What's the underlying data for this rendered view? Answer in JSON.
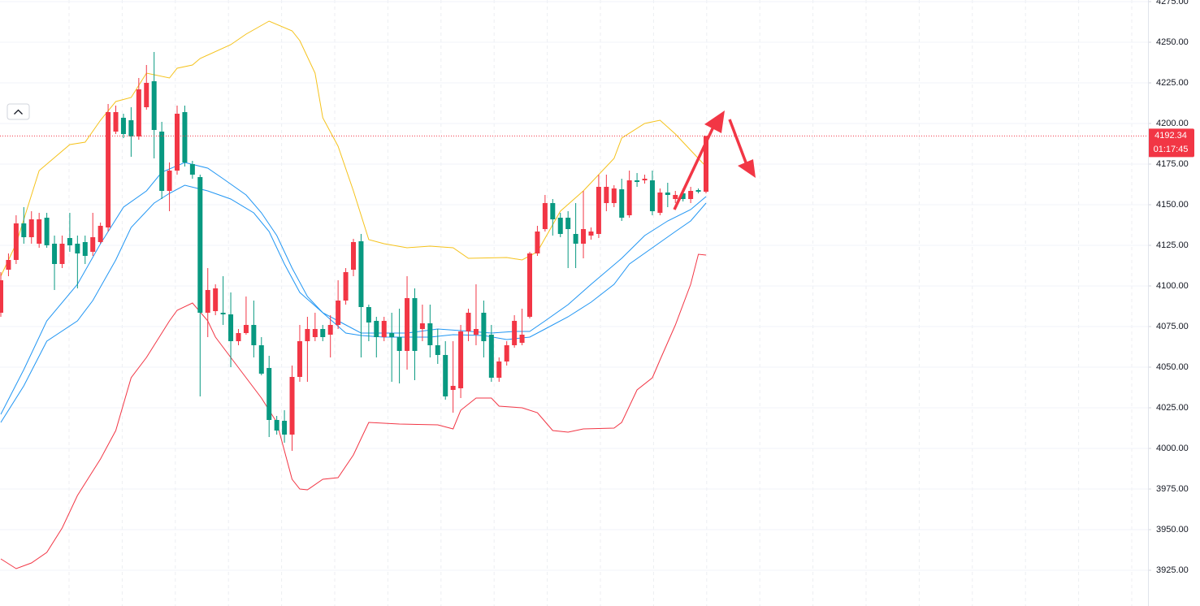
{
  "chart_data": {
    "type": "candlestick",
    "ylim": [
      3903,
      4276
    ],
    "yticks": [
      {
        "value": 3925,
        "label": "3925.00"
      },
      {
        "value": 3950,
        "label": "3950.00"
      },
      {
        "value": 3975,
        "label": "3975.00"
      },
      {
        "value": 4000,
        "label": "4000.00"
      },
      {
        "value": 4025,
        "label": "4025.00"
      },
      {
        "value": 4050,
        "label": "4050.00"
      },
      {
        "value": 4075,
        "label": "4075.00"
      },
      {
        "value": 4100,
        "label": "4100.00"
      },
      {
        "value": 4125,
        "label": "4125.00"
      },
      {
        "value": 4150,
        "label": "4150.00"
      },
      {
        "value": 4175,
        "label": "4175.00"
      },
      {
        "value": 4200,
        "label": "4200.00"
      },
      {
        "value": 4225,
        "label": "4225.00"
      },
      {
        "value": 4250,
        "label": "4250.00"
      },
      {
        "value": 4275,
        "label": "4275.00"
      }
    ],
    "grid": true,
    "up_color": "#f23645",
    "down_color": "#089981",
    "last_price": 4192.34,
    "countdown": "01:17:45",
    "ohlc": [
      [
        4083.5,
        4108.5,
        4081,
        4103.5
      ],
      [
        4110,
        4120,
        4106,
        4116
      ],
      [
        4116,
        4143.5,
        4113.5,
        4138.5
      ],
      [
        4138.5,
        4148.5,
        4126,
        4130
      ],
      [
        4130,
        4146,
        4126,
        4141
      ],
      [
        4126,
        4145,
        4123.5,
        4141
      ],
      [
        4142,
        4145,
        4123.5,
        4125
      ],
      [
        4126,
        4131,
        4097.5,
        4113.5
      ],
      [
        4113.5,
        4131,
        4111,
        4126
      ],
      [
        4129.5,
        4145,
        4121,
        4125
      ],
      [
        4126,
        4131,
        4098.5,
        4120
      ],
      [
        4127,
        4131,
        4113.5,
        4118.5
      ],
      [
        4121,
        4145,
        4118.5,
        4130
      ],
      [
        4127,
        4139,
        4126,
        4137
      ],
      [
        4136,
        4212,
        4133.5,
        4207
      ],
      [
        4195,
        4211,
        4193.5,
        4207
      ],
      [
        4203.5,
        4206,
        4191,
        4193.5
      ],
      [
        4202,
        4210,
        4179.5,
        4192
      ],
      [
        4192,
        4228,
        4190,
        4221
      ],
      [
        4210,
        4236,
        4208.5,
        4225
      ],
      [
        4226,
        4244,
        4178.5,
        4196
      ],
      [
        4195,
        4201,
        4153.5,
        4158.5
      ],
      [
        4158.5,
        4176,
        4146,
        4171
      ],
      [
        4171,
        4211,
        4168.5,
        4206
      ],
      [
        4207,
        4211,
        4173.5,
        4176
      ],
      [
        4175,
        4177,
        4166,
        4168.5
      ],
      [
        4167,
        4168.5,
        4032,
        4083.5
      ],
      [
        4083.5,
        4111,
        4068.5,
        4097.5
      ],
      [
        4084.5,
        4101,
        4082,
        4098.5
      ],
      [
        4083.5,
        4106,
        4076,
        4082.5
      ],
      [
        4082.5,
        4096,
        4050,
        4066
      ],
      [
        4066,
        4073.5,
        4063.5,
        4071
      ],
      [
        4071,
        4093.5,
        4070,
        4076
      ],
      [
        4076,
        4091,
        4056,
        4063.5
      ],
      [
        4063.5,
        4068.5,
        4045,
        4046
      ],
      [
        4049.5,
        4057,
        4007,
        4017.5
      ],
      [
        4017.5,
        4020,
        4008.5,
        4011
      ],
      [
        4017,
        4023.5,
        4003.5,
        4008.5
      ],
      [
        4008.5,
        4051,
        3998.5,
        4044
      ],
      [
        4044,
        4076,
        4041,
        4066
      ],
      [
        4066,
        4081,
        4041,
        4073.5
      ],
      [
        4068.5,
        4083.5,
        4066,
        4073.5
      ],
      [
        4073.5,
        4076,
        4066,
        4068.5
      ],
      [
        4070,
        4082,
        4056,
        4076
      ],
      [
        4076,
        4103.5,
        4073.5,
        4091
      ],
      [
        4091,
        4111,
        4088.5,
        4108.5
      ],
      [
        4110,
        4129,
        4106,
        4127
      ],
      [
        4127.5,
        4132,
        4056,
        4087
      ],
      [
        4087,
        4088.5,
        4066,
        4077.5
      ],
      [
        4078.5,
        4081,
        4056,
        4068.5
      ],
      [
        4068.5,
        4081,
        4066,
        4078.5
      ],
      [
        4071,
        4083.5,
        4041,
        4068.5
      ],
      [
        4068.5,
        4086,
        4040,
        4060
      ],
      [
        4060,
        4106,
        4048.5,
        4092.5
      ],
      [
        4092.5,
        4098.5,
        4042,
        4060
      ],
      [
        4073.5,
        4088.5,
        4066,
        4077
      ],
      [
        4077,
        4088.5,
        4056,
        4063.5
      ],
      [
        4063.5,
        4073.5,
        4052,
        4057.5
      ],
      [
        4057.5,
        4066,
        4030,
        4032
      ],
      [
        4036,
        4066,
        4022,
        4038.5
      ],
      [
        4037,
        4076,
        4031,
        4072
      ],
      [
        4072,
        4086,
        4066,
        4083.5
      ],
      [
        4070,
        4101,
        4063.5,
        4073.5
      ],
      [
        4083.5,
        4091,
        4056,
        4066
      ],
      [
        4070,
        4076,
        4041,
        4043.5
      ],
      [
        4043.5,
        4056,
        4041,
        4053.5
      ],
      [
        4053.5,
        4066,
        4051,
        4063.5
      ],
      [
        4063.5,
        4082,
        4062,
        4078.5
      ],
      [
        4065,
        4086,
        4063.5,
        4070
      ],
      [
        4081,
        4121,
        4080,
        4120
      ],
      [
        4120,
        4137,
        4118.5,
        4133.5
      ],
      [
        4135,
        4156,
        4133.5,
        4151
      ],
      [
        4151,
        4153.5,
        4131,
        4141
      ],
      [
        4142,
        4145,
        4130,
        4132
      ],
      [
        4142,
        4146,
        4111,
        4135
      ],
      [
        4132,
        4151,
        4111,
        4126
      ],
      [
        4126,
        4158.5,
        4117,
        4135
      ],
      [
        4131,
        4136,
        4128.5,
        4133.5
      ],
      [
        4132,
        4168.5,
        4129.5,
        4161
      ],
      [
        4151,
        4168.5,
        4146,
        4161
      ],
      [
        4151,
        4162,
        4148.5,
        4160
      ],
      [
        4159.5,
        4166,
        4140,
        4142
      ],
      [
        4143.5,
        4171,
        4142,
        4165
      ],
      [
        4165,
        4169.5,
        4161,
        4164
      ],
      [
        4165,
        4168.5,
        4163,
        4166
      ],
      [
        4165,
        4171,
        4143.5,
        4146
      ],
      [
        4145,
        4160,
        4143.5,
        4157.5
      ],
      [
        4157.5,
        4163.5,
        4148.5,
        4156
      ],
      [
        4153.5,
        4158.5,
        4151,
        4156
      ],
      [
        4157,
        4160,
        4152,
        4153.5
      ],
      [
        4153.5,
        4161,
        4151,
        4158.5
      ],
      [
        4159,
        4160,
        4157,
        4158
      ],
      [
        4158,
        4192,
        4157,
        4192.34
      ]
    ],
    "lines": [
      {
        "color": "#f5c21b",
        "x": [
          0,
          2,
          5,
          9,
          11,
          13,
          15,
          17,
          19,
          22,
          23,
          25,
          26,
          30,
          32,
          35,
          38,
          39,
          41,
          42,
          44,
          46,
          48,
          50,
          53,
          56,
          59,
          61,
          66,
          68,
          70,
          73,
          76,
          80,
          81,
          84,
          86,
          88,
          90,
          92
        ],
        "values": [
          4106,
          4126,
          4171,
          4187,
          4188.5,
          4202,
          4213.5,
          4216,
          4231,
          4228,
          4234,
          4236,
          4240,
          4248.5,
          4255,
          4263,
          4257,
          4251,
          4231,
          4203.5,
          4186,
          4158.5,
          4128.5,
          4126,
          4123.5,
          4124.5,
          4123.5,
          4117,
          4117.5,
          4116,
          4121,
          4146,
          4158.5,
          4178.5,
          4191,
          4200,
          4202,
          4193.5,
          4183.5,
          4173.5
        ]
      },
      {
        "color": "#2196f3",
        "x": [
          0,
          3,
          6,
          10,
          13,
          16,
          19,
          21,
          24,
          27,
          29,
          32,
          34,
          36,
          38,
          40,
          42,
          45,
          47,
          50,
          53,
          57,
          60,
          64,
          67,
          69,
          71,
          74,
          77,
          81,
          84,
          87,
          90,
          92
        ],
        "values": [
          4021,
          4048.5,
          4078.5,
          4101,
          4126,
          4148.5,
          4158.5,
          4170,
          4176,
          4172.5,
          4166,
          4156,
          4145,
          4131,
          4111,
          4093.5,
          4083.5,
          4076,
          4071,
          4071,
          4071,
          4073.5,
          4072.5,
          4071,
          4072,
          4072,
          4078.5,
          4088.5,
          4101,
          4117,
          4131,
          4140,
          4147,
          4155
        ]
      },
      {
        "color": "#2196f3",
        "x": [
          0,
          3,
          6,
          10,
          12,
          15,
          17,
          20,
          22,
          24,
          27,
          30,
          33,
          35,
          37,
          39,
          42,
          45,
          47,
          50,
          53,
          56,
          59,
          63,
          66,
          69,
          71,
          74,
          77,
          80,
          82,
          85,
          88,
          90,
          92
        ],
        "values": [
          4016,
          4038.5,
          4066,
          4078.5,
          4091,
          4116,
          4136,
          4151,
          4157,
          4162,
          4158.5,
          4153.5,
          4145,
          4133.5,
          4113.5,
          4096,
          4083.5,
          4071,
          4069.5,
          4068.5,
          4068.5,
          4068.5,
          4070,
          4069.5,
          4067,
          4068.5,
          4073.5,
          4081,
          4090,
          4101,
          4113.5,
          4123.5,
          4133.5,
          4140,
          4151
        ]
      },
      {
        "color": "#f23645",
        "x": [
          0,
          2,
          4,
          6,
          8,
          10,
          12,
          13,
          15,
          17,
          19,
          22,
          23,
          25,
          27,
          28,
          30,
          32,
          34,
          36,
          38,
          39,
          40,
          42,
          44,
          46,
          47,
          48,
          52,
          57,
          59,
          60,
          62,
          64,
          65,
          68,
          70,
          72,
          74,
          76,
          80,
          81,
          83,
          85,
          86,
          88,
          90,
          91,
          92
        ],
        "values": [
          3932,
          3926,
          3929.5,
          3936,
          3951,
          3971,
          3986,
          3993.5,
          4011,
          4043.5,
          4056,
          4078.5,
          4085,
          4089.5,
          4078.5,
          4068.5,
          4056,
          4043.5,
          4031,
          4016,
          3981,
          3975,
          3974.5,
          3981,
          3982,
          3996,
          4006,
          4016,
          4015,
          4014.5,
          4012,
          4023.5,
          4031,
          4031,
          4026,
          4025,
          4022,
          4011,
          4010,
          4012,
          4012.5,
          4016,
          4036,
          4043.5,
          4054.5,
          4076,
          4101,
          4119.5,
          4119
        ]
      }
    ]
  }
}
